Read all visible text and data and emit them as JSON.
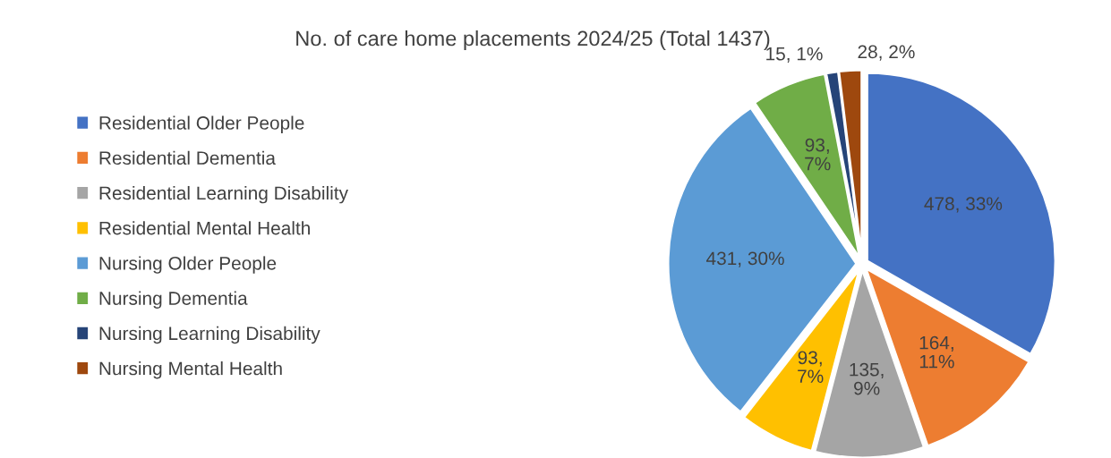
{
  "chart_data": {
    "type": "pie",
    "title": "No. of care home placements 2024/25 (Total 1437)",
    "categories": [
      "Residential Older People",
      "Residential Dementia",
      "Residential Learning Disability",
      "Residential Mental Health",
      "Nursing Older People",
      "Nursing Dementia",
      "Nursing Learning Disability",
      "Nursing Mental Health"
    ],
    "values": [
      478,
      164,
      135,
      93,
      431,
      93,
      15,
      28
    ],
    "colors": [
      "#4472c4",
      "#ed7d31",
      "#a5a5a5",
      "#ffc000",
      "#5b9bd5",
      "#70ad47",
      "#264478",
      "#9e480e"
    ],
    "value_labels": [
      "478, 33%",
      "164, 11%",
      "135, 9%",
      "93, 7%",
      "431, 30%",
      "93, 7%",
      "15, 1%",
      "28, 2%"
    ],
    "legend": "left"
  }
}
